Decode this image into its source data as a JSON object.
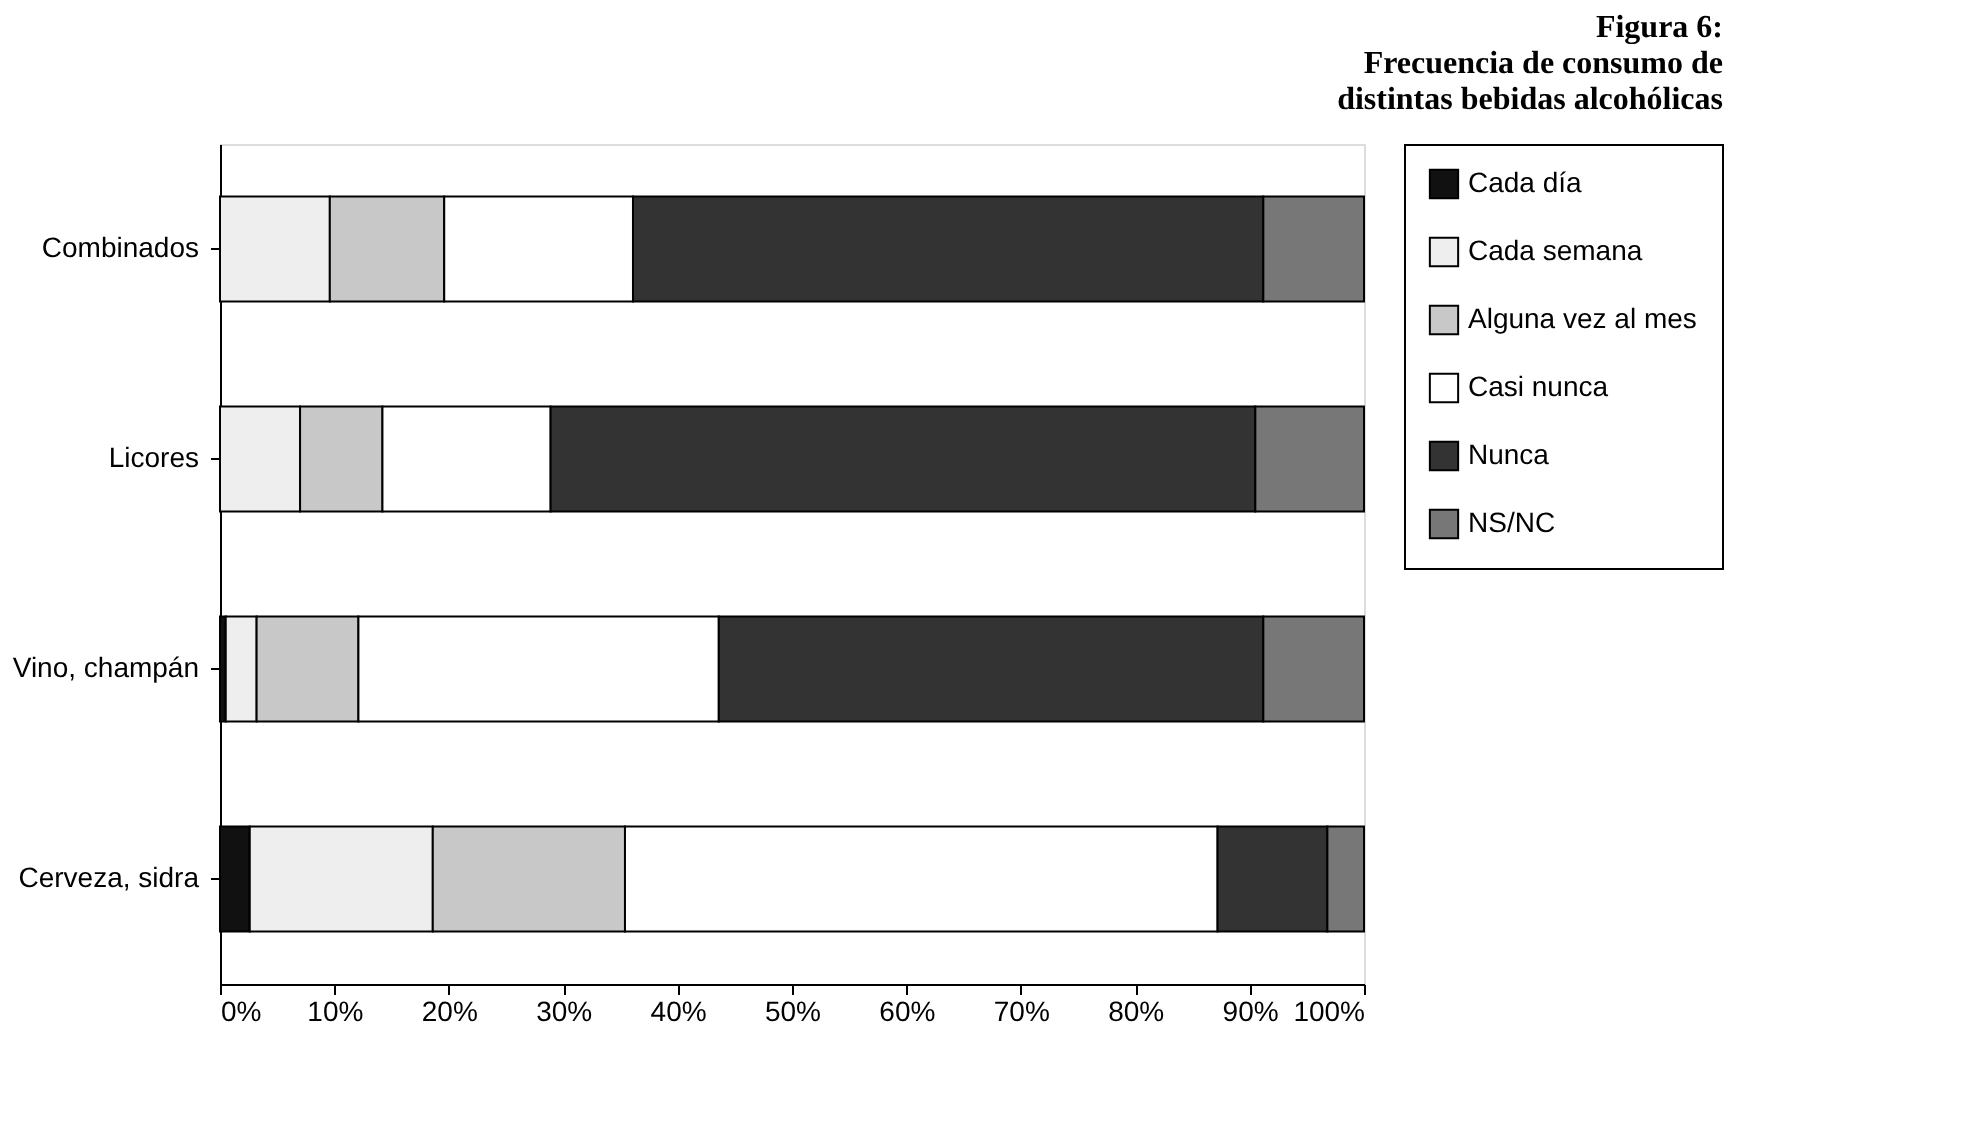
{
  "chart_data": {
    "type": "bar",
    "orientation": "horizontal",
    "stacked": true,
    "title": [
      "Figura 6:",
      "Frecuencia de consumo de",
      "distintas bebidas alcohólicas"
    ],
    "categories": [
      "Combinados",
      "Licores",
      "Vino, champán",
      "Cerveza, sidra"
    ],
    "series": [
      {
        "name": "Cada día",
        "color": "#111111",
        "values": [
          0,
          0,
          0.5,
          2.6
        ]
      },
      {
        "name": "Cada semana",
        "color": "#eeeeee",
        "values": [
          9.6,
          7,
          2.7,
          16
        ]
      },
      {
        "name": "Alguna vez al mes",
        "color": "#c8c8c8",
        "values": [
          10,
          7.2,
          8.9,
          16.8
        ]
      },
      {
        "name": "Casi nunca",
        "color": "#ffffff",
        "values": [
          16.5,
          14.7,
          31.5,
          51.8
        ]
      },
      {
        "name": "Nunca",
        "color": "#333333",
        "values": [
          55.1,
          61.6,
          47.6,
          9.6
        ]
      },
      {
        "name": "NS/NC",
        "color": "#777777",
        "values": [
          8.8,
          9.5,
          8.8,
          3.2
        ]
      }
    ],
    "xlim": [
      0,
      100
    ],
    "xticks": [
      {
        "value": 0,
        "label": "0%"
      },
      {
        "value": 10,
        "label": "10%"
      },
      {
        "value": 20,
        "label": "20%"
      },
      {
        "value": 30,
        "label": "30%"
      },
      {
        "value": 40,
        "label": "40%"
      },
      {
        "value": 50,
        "label": "50%"
      },
      {
        "value": 60,
        "label": "60%"
      },
      {
        "value": 70,
        "label": "70%"
      },
      {
        "value": 80,
        "label": "80%"
      },
      {
        "value": 90,
        "label": "90%"
      },
      {
        "value": 100,
        "label": "100%"
      }
    ],
    "grid": false,
    "legend": "right"
  }
}
